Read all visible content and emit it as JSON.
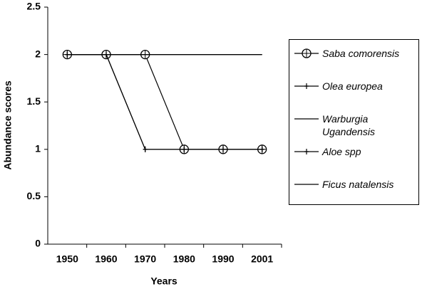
{
  "chart_data": {
    "type": "line",
    "x_label": "Years",
    "y_label": "Abundance scores",
    "categories": [
      "1950",
      "1960",
      "1970",
      "1980",
      "1990",
      "2001"
    ],
    "ylim": [
      0,
      2.5
    ],
    "yticks": [
      0,
      0.5,
      1,
      1.5,
      2,
      2.5
    ],
    "series": [
      {
        "name": "Saba comorensis",
        "color": "#000000",
        "marker": "circle",
        "values": [
          2,
          2,
          2,
          1,
          1,
          1
        ]
      },
      {
        "name": "Olea europea",
        "color": "#000000",
        "marker": "plus",
        "values": [
          2,
          2,
          1,
          1,
          1,
          1
        ]
      },
      {
        "name": "Warburgia Ugandensis",
        "color": "#000000",
        "marker": "none",
        "values": [
          2,
          2,
          2,
          2,
          2,
          2
        ]
      },
      {
        "name": "Aloe spp",
        "color": "#000000",
        "marker": "plus",
        "values": [
          2,
          2,
          1,
          1,
          1,
          1
        ]
      },
      {
        "name": "Ficus natalensis",
        "color": "#000000",
        "marker": "none",
        "values": [
          2,
          2,
          2,
          2,
          2,
          2
        ]
      }
    ]
  }
}
